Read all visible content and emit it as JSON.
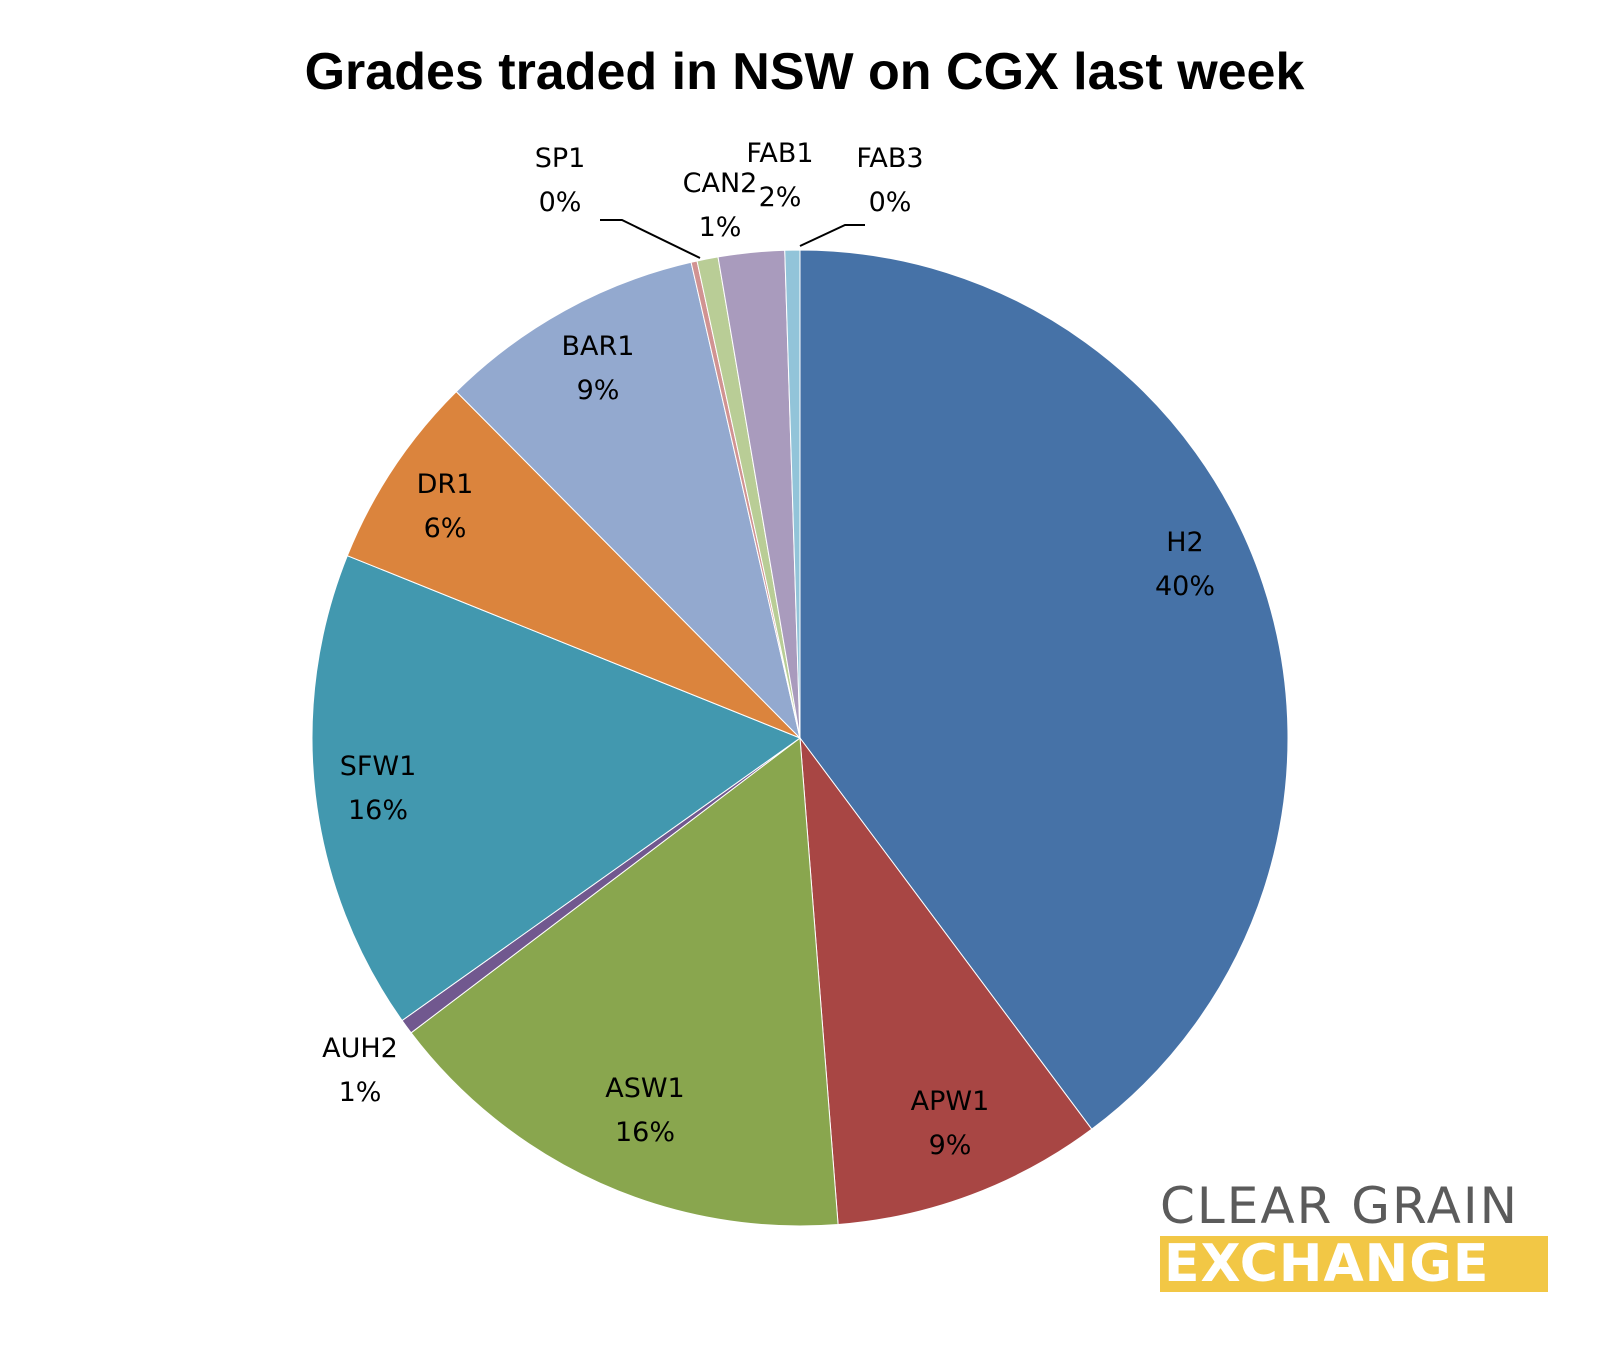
{
  "chart_data": {
    "type": "pie",
    "title": "Grades traded in NSW on CGX last week",
    "slices": [
      {
        "name": "H2",
        "value": 40,
        "label": "40%",
        "color": "#4672a7"
      },
      {
        "name": "APW1",
        "value": 9,
        "label": "9%",
        "color": "#a84644"
      },
      {
        "name": "ASW1",
        "value": 16,
        "label": "16%",
        "color": "#89a64e"
      },
      {
        "name": "AUH2",
        "value": 0.5,
        "label": "1%",
        "color": "#71588f"
      },
      {
        "name": "SFW1",
        "value": 16,
        "label": "16%",
        "color": "#4298af"
      },
      {
        "name": "DR1",
        "value": 6.5,
        "label": "6%",
        "color": "#db843d"
      },
      {
        "name": "BAR1",
        "value": 8.9,
        "label": "9%",
        "color": "#93a9cf"
      },
      {
        "name": "SP1",
        "value": 0.2,
        "label": "0%",
        "color": "#d19392"
      },
      {
        "name": "CAN2",
        "value": 0.7,
        "label": "1%",
        "color": "#b9cd96"
      },
      {
        "name": "FAB1",
        "value": 2.2,
        "label": "2%",
        "color": "#a99bbd"
      },
      {
        "name": "FAB3",
        "value": 0.5,
        "label": "0%",
        "color": "#92c4d9"
      }
    ]
  },
  "logo": {
    "line1": "CLEAR GRAIN",
    "line2": "EXCHANGE",
    "line1_color": "#5b5b5b",
    "line2_bg": "#f2c745"
  }
}
